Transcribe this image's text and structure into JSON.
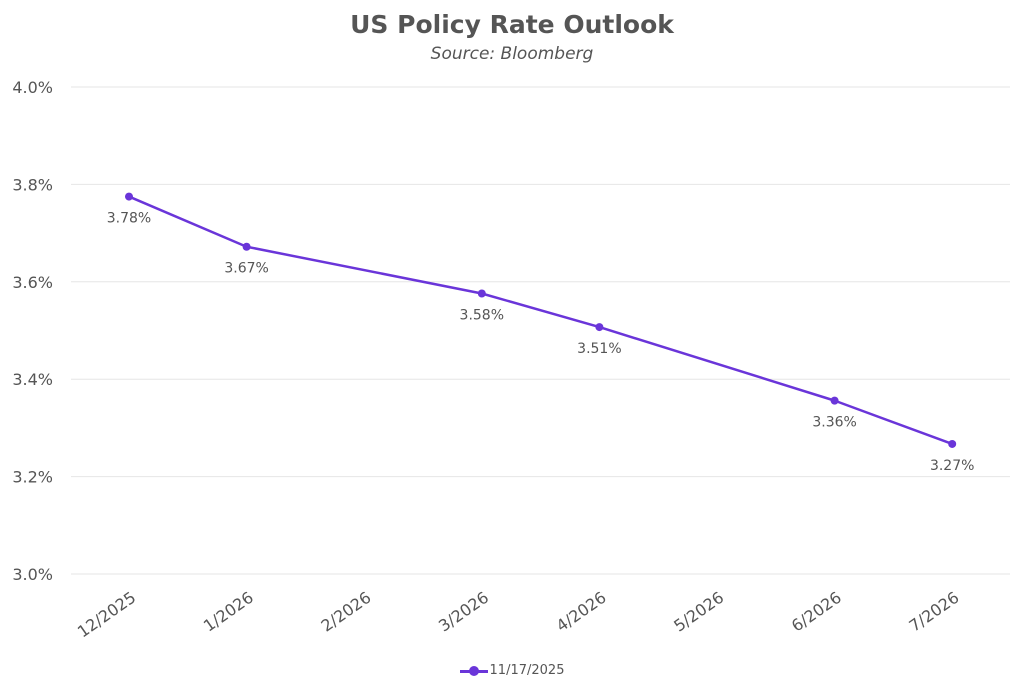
{
  "chart_data": {
    "type": "line",
    "title": "US Policy Rate Outlook",
    "subtitle": "Source: Bloomberg",
    "xlabel": "",
    "ylabel": "",
    "categories": [
      "12/2025",
      "1/2026",
      "2/2026",
      "3/2026",
      "4/2026",
      "5/2026",
      "6/2026",
      "7/2026"
    ],
    "ylim": [
      3.0,
      4.0
    ],
    "yticks": [
      3.0,
      3.2,
      3.4,
      3.6,
      3.8,
      4.0
    ],
    "ytick_labels": [
      "3.0%",
      "3.2%",
      "3.4%",
      "3.6%",
      "3.8%",
      "4.0%"
    ],
    "grid": true,
    "legend_position": "bottom",
    "series": [
      {
        "name": "11/17/2025",
        "color": "#6a35d9",
        "points": [
          {
            "x": "12/2025",
            "y": 3.775,
            "label": "3.78%"
          },
          {
            "x": "1/2026",
            "y": 3.672,
            "label": "3.67%"
          },
          {
            "x": "3/2026",
            "y": 3.576,
            "label": "3.58%"
          },
          {
            "x": "4/2026",
            "y": 3.507,
            "label": "3.51%"
          },
          {
            "x": "6/2026",
            "y": 3.356,
            "label": "3.36%"
          },
          {
            "x": "7/2026",
            "y": 3.267,
            "label": "3.27%"
          }
        ]
      }
    ]
  },
  "colors": {
    "text": "#555555",
    "grid": "#e6e6e6"
  }
}
